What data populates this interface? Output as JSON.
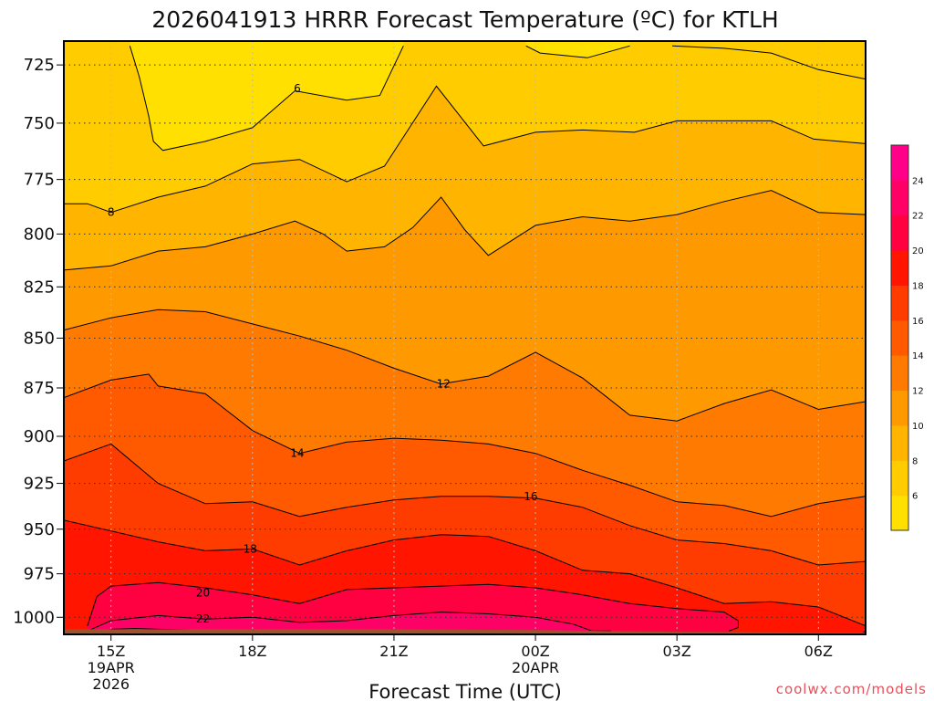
{
  "chart_data": {
    "type": "heatmap",
    "subtype": "filled-contour",
    "title": "2026041913 HRRR Forecast Temperature (ºC) for KTLH",
    "xlabel": "Forecast Time (UTC)",
    "ylabel": "",
    "credit": "coolwx.com/models",
    "y_axis": {
      "scale": "pressure (inverted, log-like)",
      "range": [
        1010,
        715
      ],
      "ticks": [
        725,
        750,
        775,
        800,
        825,
        850,
        875,
        900,
        925,
        950,
        975,
        1000
      ]
    },
    "x_axis": {
      "range": [
        14,
        31
      ],
      "ticks": [
        {
          "hour": 15,
          "label": "15Z",
          "line2": "19APR",
          "line3": "2026"
        },
        {
          "hour": 18,
          "label": "18Z",
          "line2": "",
          "line3": ""
        },
        {
          "hour": 21,
          "label": "21Z",
          "line2": "",
          "line3": ""
        },
        {
          "hour": 24,
          "label": "00Z",
          "line2": "20APR",
          "line3": ""
        },
        {
          "hour": 27,
          "label": "03Z",
          "line2": "",
          "line3": ""
        },
        {
          "hour": 30,
          "label": "06Z",
          "line2": "",
          "line3": ""
        }
      ]
    },
    "grid": true,
    "colorbar": {
      "position": "right",
      "ticks": [
        6,
        8,
        10,
        12,
        14,
        16,
        18,
        20,
        22,
        24
      ],
      "bins": [
        {
          "min": 4,
          "max": 6,
          "color": "#ffe000"
        },
        {
          "min": 6,
          "max": 8,
          "color": "#ffcc00"
        },
        {
          "min": 8,
          "max": 10,
          "color": "#ffb400"
        },
        {
          "min": 10,
          "max": 12,
          "color": "#ff9900"
        },
        {
          "min": 12,
          "max": 14,
          "color": "#ff7a00"
        },
        {
          "min": 14,
          "max": 16,
          "color": "#ff5a00"
        },
        {
          "min": 16,
          "max": 18,
          "color": "#ff3c00"
        },
        {
          "min": 18,
          "max": 20,
          "color": "#ff1500"
        },
        {
          "min": 20,
          "max": 22,
          "color": "#ff0040"
        },
        {
          "min": 22,
          "max": 24,
          "color": "#ff0066"
        },
        {
          "min": 24,
          "max": 26,
          "color": "#ff0088"
        }
      ]
    },
    "surface_color": "#a0522d",
    "surface_pressure": [
      [
        14,
        1007
      ],
      [
        17,
        1007
      ],
      [
        21,
        1007
      ],
      [
        24,
        1007.5
      ],
      [
        27,
        1008.5
      ],
      [
        31,
        1009
      ]
    ],
    "contours": [
      {
        "level": 6,
        "label": "6",
        "label_at": [
          18.95,
          735
        ],
        "points": [
          [
            15.4,
            717
          ],
          [
            15.6,
            730
          ],
          [
            15.8,
            747
          ],
          [
            15.9,
            758
          ],
          [
            16.1,
            762
          ],
          [
            17.0,
            758
          ],
          [
            18.0,
            752
          ],
          [
            18.9,
            736
          ],
          [
            20.0,
            740
          ],
          [
            20.7,
            738
          ],
          [
            21.2,
            717
          ]
        ]
      },
      {
        "level": 6,
        "label": "",
        "points": [
          [
            23.8,
            717
          ],
          [
            24.1,
            720
          ],
          [
            25.1,
            722
          ],
          [
            26.0,
            717
          ]
        ]
      },
      {
        "level": 8,
        "label": "8",
        "label_at": [
          15.0,
          790
        ],
        "points": [
          [
            14.0,
            786
          ],
          [
            14.5,
            786
          ],
          [
            15.0,
            790
          ],
          [
            16.0,
            783
          ],
          [
            17.0,
            778
          ],
          [
            18.0,
            768
          ],
          [
            19.0,
            766
          ],
          [
            20.0,
            776
          ],
          [
            20.8,
            769
          ],
          [
            21.9,
            734
          ],
          [
            22.9,
            760
          ],
          [
            24.0,
            754
          ],
          [
            25.0,
            753
          ],
          [
            26.1,
            754
          ],
          [
            27.0,
            749
          ],
          [
            28.0,
            749
          ],
          [
            29.0,
            749
          ],
          [
            29.9,
            757
          ],
          [
            31.0,
            759
          ]
        ]
      },
      {
        "level": 8,
        "label": "",
        "points": [
          [
            26.9,
            717
          ],
          [
            28.0,
            718
          ],
          [
            29.0,
            720
          ],
          [
            30.0,
            727
          ],
          [
            31.0,
            731
          ]
        ]
      },
      {
        "level": 10,
        "label": "",
        "points": [
          [
            14.0,
            817
          ],
          [
            15.0,
            815
          ],
          [
            16.0,
            808
          ],
          [
            17.0,
            806
          ],
          [
            18.0,
            800
          ],
          [
            18.9,
            794
          ],
          [
            19.5,
            800
          ],
          [
            20.0,
            808
          ],
          [
            20.8,
            806
          ],
          [
            21.4,
            797
          ],
          [
            22.0,
            783
          ],
          [
            22.5,
            798
          ],
          [
            23.0,
            810
          ],
          [
            24.0,
            796
          ],
          [
            25.0,
            792
          ],
          [
            26.0,
            794
          ],
          [
            27.0,
            791
          ],
          [
            28.0,
            785
          ],
          [
            29.0,
            780
          ],
          [
            30.0,
            790
          ],
          [
            31.0,
            791
          ]
        ]
      },
      {
        "level": 12,
        "label": "12",
        "label_at": [
          22.05,
          873
        ],
        "points": [
          [
            14.0,
            846
          ],
          [
            15.0,
            840
          ],
          [
            16.0,
            836
          ],
          [
            17.0,
            837
          ],
          [
            18.0,
            843
          ],
          [
            19.0,
            849
          ],
          [
            20.0,
            856
          ],
          [
            21.0,
            865
          ],
          [
            22.0,
            873
          ],
          [
            23.0,
            869
          ],
          [
            24.0,
            857
          ],
          [
            25.0,
            870
          ],
          [
            26.0,
            889
          ],
          [
            27.0,
            892
          ],
          [
            28.0,
            883
          ],
          [
            29.0,
            876
          ],
          [
            30.0,
            886
          ],
          [
            31.0,
            882
          ]
        ]
      },
      {
        "level": 14,
        "label": "14",
        "label_at": [
          18.95,
          909
        ],
        "points": [
          [
            14.0,
            880
          ],
          [
            15.0,
            871
          ],
          [
            15.8,
            868
          ],
          [
            16.0,
            874
          ],
          [
            17.0,
            878
          ],
          [
            18.0,
            897
          ],
          [
            19.0,
            909
          ],
          [
            20.0,
            903
          ],
          [
            21.0,
            901
          ],
          [
            22.0,
            902
          ],
          [
            23.0,
            904
          ],
          [
            24.0,
            909
          ],
          [
            25.0,
            918
          ],
          [
            26.0,
            926
          ],
          [
            27.0,
            935
          ],
          [
            28.0,
            937
          ],
          [
            29.0,
            943
          ],
          [
            30.0,
            936
          ],
          [
            31.0,
            932
          ]
        ]
      },
      {
        "level": 16,
        "label": "16",
        "label_at": [
          23.9,
          932
        ],
        "points": [
          [
            14.0,
            913
          ],
          [
            15.0,
            904
          ],
          [
            16.0,
            925
          ],
          [
            17.0,
            936
          ],
          [
            18.0,
            935
          ],
          [
            19.0,
            943
          ],
          [
            20.0,
            938
          ],
          [
            21.0,
            934
          ],
          [
            22.0,
            932
          ],
          [
            23.0,
            932
          ],
          [
            24.0,
            933
          ],
          [
            25.0,
            938
          ],
          [
            26.0,
            948
          ],
          [
            27.0,
            956
          ],
          [
            28.0,
            958
          ],
          [
            29.0,
            962
          ],
          [
            30.0,
            970
          ],
          [
            31.0,
            968
          ]
        ]
      },
      {
        "level": 18,
        "label": "18",
        "label_at": [
          17.95,
          961
        ],
        "points": [
          [
            14.0,
            945
          ],
          [
            15.0,
            951
          ],
          [
            16.0,
            957
          ],
          [
            17.0,
            962
          ],
          [
            18.0,
            961
          ],
          [
            19.0,
            970
          ],
          [
            20.0,
            962
          ],
          [
            21.0,
            956
          ],
          [
            22.0,
            953
          ],
          [
            23.0,
            954
          ],
          [
            24.0,
            962
          ],
          [
            25.0,
            973
          ],
          [
            26.0,
            975
          ],
          [
            27.0,
            983
          ],
          [
            28.0,
            992
          ],
          [
            29.0,
            991
          ],
          [
            30.0,
            994
          ],
          [
            31.0,
            1005
          ],
          [
            31.0,
            1008
          ],
          [
            30.9,
            1010
          ]
        ]
      },
      {
        "level": 20,
        "label": "20",
        "label_at": [
          16.95,
          986
        ],
        "points": [
          [
            14.5,
            1005
          ],
          [
            14.7,
            988
          ],
          [
            15.0,
            982
          ],
          [
            16.0,
            980
          ],
          [
            17.0,
            983
          ],
          [
            18.0,
            987
          ],
          [
            19.0,
            992
          ],
          [
            20.0,
            984
          ],
          [
            21.0,
            983
          ],
          [
            22.0,
            982
          ],
          [
            23.0,
            981
          ],
          [
            24.0,
            983
          ],
          [
            25.0,
            987
          ],
          [
            26.0,
            992
          ],
          [
            27.0,
            995
          ],
          [
            28.0,
            997
          ],
          [
            28.3,
            1002
          ],
          [
            28.3,
            1006
          ],
          [
            28.1,
            1008
          ]
        ]
      },
      {
        "level": 22,
        "label": "22",
        "label_at": [
          16.95,
          1001
        ],
        "points": [
          [
            14.5,
            1008
          ],
          [
            15.0,
            1002
          ],
          [
            16.0,
            999
          ],
          [
            17.0,
            1001
          ],
          [
            18.0,
            1000
          ],
          [
            19.0,
            1003
          ],
          [
            20.0,
            1002
          ],
          [
            21.0,
            999
          ],
          [
            22.0,
            997
          ],
          [
            23.0,
            998
          ],
          [
            24.0,
            1000
          ],
          [
            24.8,
            1004
          ],
          [
            25.2,
            1008
          ],
          [
            25.6,
            1008
          ]
        ]
      },
      {
        "level": 24,
        "label": "",
        "points": [
          [
            15.0,
            1007
          ],
          [
            15.5,
            1006.5
          ],
          [
            16.0,
            1007
          ],
          [
            17.0,
            1007.5
          ]
        ]
      }
    ],
    "regions": [
      {
        "value": 5,
        "points": [
          [
            15.4,
            717
          ],
          [
            15.6,
            730
          ],
          [
            15.8,
            747
          ],
          [
            15.9,
            758
          ],
          [
            16.1,
            762
          ],
          [
            17.0,
            758
          ],
          [
            18.0,
            752
          ],
          [
            18.9,
            736
          ],
          [
            20.0,
            740
          ],
          [
            20.7,
            738
          ],
          [
            21.2,
            717
          ]
        ]
      },
      {
        "value": 5,
        "points": [
          [
            23.8,
            717
          ],
          [
            24.1,
            720
          ],
          [
            25.1,
            722
          ],
          [
            26.0,
            717
          ]
        ]
      },
      {
        "value": 7,
        "boundary": true
      },
      {
        "value": 7,
        "points": [
          [
            26.9,
            717
          ],
          [
            28.0,
            718
          ],
          [
            29.0,
            720
          ],
          [
            30.0,
            727
          ],
          [
            31.0,
            731
          ],
          [
            31.0,
            717
          ]
        ]
      },
      {
        "value": 9,
        "below": 8
      },
      {
        "value": 11,
        "below": 10
      },
      {
        "value": 13,
        "below": 12
      },
      {
        "value": 15,
        "below": 14
      },
      {
        "value": 17,
        "below": 16
      },
      {
        "value": 19,
        "below": 18
      },
      {
        "value": 21,
        "below": 20
      },
      {
        "value": 23,
        "below": 22
      },
      {
        "value": 25,
        "below": 24
      }
    ]
  }
}
